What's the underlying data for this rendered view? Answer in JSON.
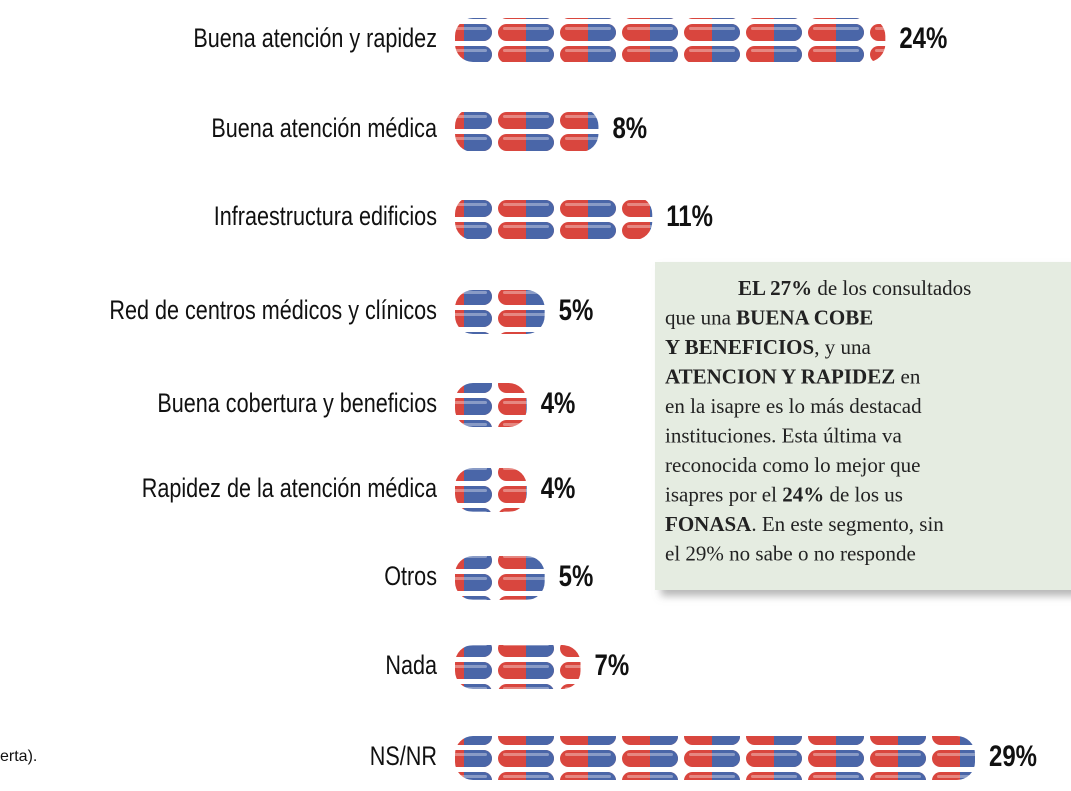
{
  "chart_data": {
    "type": "bar",
    "orientation": "horizontal",
    "categories": [
      "Buena atención y rapidez",
      "Buena atención médica",
      "Infraestructura edificios",
      "Red de centros médicos y clínicos",
      "Buena cobertura y beneficios",
      "Rapidez de la atención médica",
      "Otros",
      "Nada",
      "NS/NR"
    ],
    "values": [
      24,
      8,
      11,
      5,
      4,
      4,
      5,
      7,
      29
    ],
    "value_labels": [
      "24%",
      "8%",
      "11%",
      "5%",
      "4%",
      "4%",
      "5%",
      "7%",
      "29%"
    ],
    "colors": [
      "#d9463e",
      "#4a66a8"
    ],
    "footnote": "erta).",
    "annotation": [
      [
        {
          "text": "EL 27%",
          "bold": true
        },
        {
          "text": " de los consultados",
          "bold": false
        }
      ],
      [
        {
          "text": "que una ",
          "bold": false
        },
        {
          "text": "BUENA COBE",
          "bold": true
        }
      ],
      [
        {
          "text": "Y BENEFICIOS",
          "bold": true
        },
        {
          "text": ", y una",
          "bold": false
        }
      ],
      [
        {
          "text": "ATENCION Y RAPIDEZ",
          "bold": true
        },
        {
          "text": " en",
          "bold": false
        }
      ],
      [
        {
          "text": "en la isapre es lo más destacad",
          "bold": false
        }
      ],
      [
        {
          "text": "instituciones. Esta última va",
          "bold": false
        }
      ],
      [
        {
          "text": "reconocida como lo mejor que",
          "bold": false
        }
      ],
      [
        {
          "text": "isapres por el ",
          "bold": false
        },
        {
          "text": "24%",
          "bold": true
        },
        {
          "text": " de los us",
          "bold": false
        }
      ],
      [
        {
          "text": "FONASA",
          "bold": true
        },
        {
          "text": ". En este segmento, sin",
          "bold": false
        }
      ],
      [
        {
          "text": "el 29% no sabe o no responde",
          "bold": false
        }
      ]
    ]
  }
}
